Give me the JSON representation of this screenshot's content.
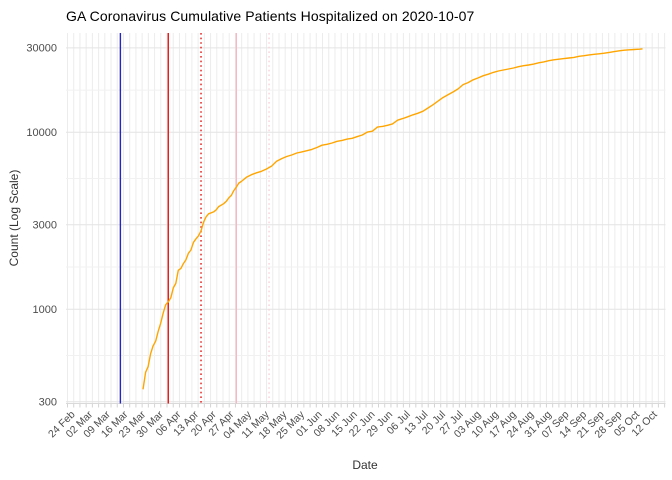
{
  "chart_data": {
    "type": "line",
    "title": "GA Coronavirus Cumulative Patients Hospitalized on 2020-10-07",
    "xlabel": "Date",
    "ylabel": "Count (Log Scale)",
    "y_scale": "log10",
    "ylim": [
      293,
      36400
    ],
    "grid": "on",
    "legend": "none",
    "y_tick_values": [
      300,
      1000,
      3000,
      10000,
      30000
    ],
    "y_tick_labels": [
      "300",
      "1000",
      "3000",
      "10000",
      "30000"
    ],
    "x_tick_start_date": "2020-02-24",
    "x_tick_interval_days": 7,
    "x_tick_labels": [
      "24 Feb",
      "02 Mar",
      "09 Mar",
      "16 Mar",
      "23 Mar",
      "30 Mar",
      "06 Apr",
      "13 Apr",
      "20 Apr",
      "27 Apr",
      "04 May",
      "11 May",
      "18 May",
      "25 May",
      "01 Jun",
      "08 Jun",
      "15 Jun",
      "22 Jun",
      "29 Jun",
      "06 Jul",
      "13 Jul",
      "20 Jul",
      "27 Jul",
      "03 Aug",
      "10 Aug",
      "17 Aug",
      "24 Aug",
      "31 Aug",
      "07 Sep",
      "14 Sep",
      "21 Sep",
      "28 Sep",
      "05 Oct",
      "12 Oct"
    ],
    "event_lines": [
      {
        "date": "2020-03-14",
        "color": "#2424cc",
        "style": "solid"
      },
      {
        "date": "2020-04-02",
        "color": "#e81414",
        "style": "solid"
      },
      {
        "date": "2020-04-15",
        "color": "#e81414",
        "style": "dotted"
      },
      {
        "date": "2020-04-29",
        "color": "#f5b8c4",
        "style": "solid"
      },
      {
        "date": "2020-05-12",
        "color": "#f9d2dc",
        "style": "dotted"
      }
    ],
    "series": [
      {
        "name": "cumulative-patients-hospitalized",
        "color": "#ffa500",
        "points": [
          [
            "2020-03-23",
            355
          ],
          [
            "2020-03-24",
            440
          ],
          [
            "2020-03-25",
            473
          ],
          [
            "2020-03-26",
            560
          ],
          [
            "2020-03-27",
            620
          ],
          [
            "2020-03-28",
            660
          ],
          [
            "2020-03-29",
            750
          ],
          [
            "2020-03-30",
            833
          ],
          [
            "2020-03-31",
            950
          ],
          [
            "2020-04-01",
            1060
          ],
          [
            "2020-04-02",
            1100
          ],
          [
            "2020-04-03",
            1160
          ],
          [
            "2020-04-04",
            1320
          ],
          [
            "2020-04-05",
            1400
          ],
          [
            "2020-04-06",
            1660
          ],
          [
            "2020-04-07",
            1700
          ],
          [
            "2020-04-08",
            1810
          ],
          [
            "2020-04-09",
            1900
          ],
          [
            "2020-04-10",
            2070
          ],
          [
            "2020-04-11",
            2160
          ],
          [
            "2020-04-12",
            2390
          ],
          [
            "2020-04-13",
            2500
          ],
          [
            "2020-04-14",
            2600
          ],
          [
            "2020-04-15",
            2770
          ],
          [
            "2020-04-16",
            3100
          ],
          [
            "2020-04-17",
            3330
          ],
          [
            "2020-04-18",
            3460
          ],
          [
            "2020-04-20",
            3550
          ],
          [
            "2020-04-21",
            3640
          ],
          [
            "2020-04-22",
            3800
          ],
          [
            "2020-04-24",
            3950
          ],
          [
            "2020-04-25",
            4070
          ],
          [
            "2020-04-26",
            4250
          ],
          [
            "2020-04-27",
            4400
          ],
          [
            "2020-04-28",
            4680
          ],
          [
            "2020-04-29",
            4900
          ],
          [
            "2020-04-30",
            5160
          ],
          [
            "2020-05-01",
            5270
          ],
          [
            "2020-05-03",
            5570
          ],
          [
            "2020-05-05",
            5760
          ],
          [
            "2020-05-07",
            5900
          ],
          [
            "2020-05-09",
            6020
          ],
          [
            "2020-05-11",
            6200
          ],
          [
            "2020-05-13",
            6440
          ],
          [
            "2020-05-15",
            6860
          ],
          [
            "2020-05-17",
            7100
          ],
          [
            "2020-05-19",
            7300
          ],
          [
            "2020-05-21",
            7440
          ],
          [
            "2020-05-23",
            7640
          ],
          [
            "2020-05-25",
            7750
          ],
          [
            "2020-05-27",
            7870
          ],
          [
            "2020-05-29",
            8000
          ],
          [
            "2020-05-31",
            8200
          ],
          [
            "2020-06-02",
            8450
          ],
          [
            "2020-06-04",
            8550
          ],
          [
            "2020-06-06",
            8700
          ],
          [
            "2020-06-08",
            8900
          ],
          [
            "2020-06-10",
            9000
          ],
          [
            "2020-06-12",
            9150
          ],
          [
            "2020-06-14",
            9250
          ],
          [
            "2020-06-16",
            9450
          ],
          [
            "2020-06-18",
            9650
          ],
          [
            "2020-06-20",
            10020
          ],
          [
            "2020-06-22",
            10150
          ],
          [
            "2020-06-24",
            10700
          ],
          [
            "2020-06-26",
            10800
          ],
          [
            "2020-06-28",
            10950
          ],
          [
            "2020-06-30",
            11150
          ],
          [
            "2020-07-02",
            11700
          ],
          [
            "2020-07-04",
            11950
          ],
          [
            "2020-07-06",
            12230
          ],
          [
            "2020-07-08",
            12550
          ],
          [
            "2020-07-10",
            12800
          ],
          [
            "2020-07-12",
            13150
          ],
          [
            "2020-07-14",
            13700
          ],
          [
            "2020-07-16",
            14300
          ],
          [
            "2020-07-18",
            15000
          ],
          [
            "2020-07-20",
            15700
          ],
          [
            "2020-07-22",
            16300
          ],
          [
            "2020-07-24",
            16900
          ],
          [
            "2020-07-26",
            17600
          ],
          [
            "2020-07-28",
            18600
          ],
          [
            "2020-07-30",
            19100
          ],
          [
            "2020-08-01",
            19800
          ],
          [
            "2020-08-03",
            20300
          ],
          [
            "2020-08-05",
            20900
          ],
          [
            "2020-08-07",
            21300
          ],
          [
            "2020-08-09",
            21800
          ],
          [
            "2020-08-11",
            22200
          ],
          [
            "2020-08-13",
            22500
          ],
          [
            "2020-08-15",
            22800
          ],
          [
            "2020-08-17",
            23100
          ],
          [
            "2020-08-19",
            23500
          ],
          [
            "2020-08-21",
            23800
          ],
          [
            "2020-08-23",
            24000
          ],
          [
            "2020-08-25",
            24300
          ],
          [
            "2020-08-27",
            24700
          ],
          [
            "2020-08-29",
            25000
          ],
          [
            "2020-08-31",
            25400
          ],
          [
            "2020-09-02",
            25700
          ],
          [
            "2020-09-04",
            25900
          ],
          [
            "2020-09-06",
            26100
          ],
          [
            "2020-09-08",
            26300
          ],
          [
            "2020-09-10",
            26500
          ],
          [
            "2020-09-12",
            26900
          ],
          [
            "2020-09-14",
            27100
          ],
          [
            "2020-09-16",
            27400
          ],
          [
            "2020-09-18",
            27600
          ],
          [
            "2020-09-20",
            27800
          ],
          [
            "2020-09-22",
            28000
          ],
          [
            "2020-09-24",
            28300
          ],
          [
            "2020-09-26",
            28600
          ],
          [
            "2020-09-28",
            28900
          ],
          [
            "2020-09-30",
            29100
          ],
          [
            "2020-10-02",
            29250
          ],
          [
            "2020-10-04",
            29400
          ],
          [
            "2020-10-06",
            29500
          ],
          [
            "2020-10-07",
            29600
          ]
        ]
      }
    ]
  }
}
